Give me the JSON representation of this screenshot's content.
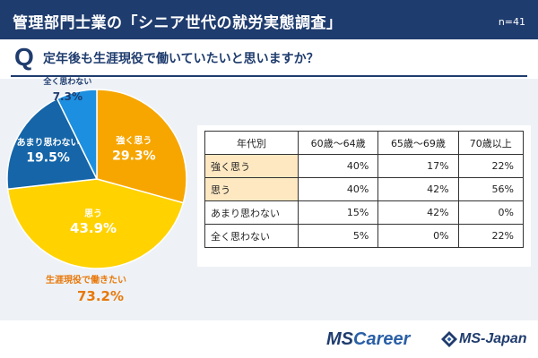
{
  "header": {
    "title": "管理部門士業の「シニア世代の就労実態調査」",
    "sample": "n=41"
  },
  "question": {
    "mark": "Q",
    "text": "定年後も生涯現役で働いていたいと思いますか？"
  },
  "colors": {
    "header_bg": "#1f3c6e",
    "panel_bg": "#eef2f6",
    "strongly_agree": "#f7a600",
    "agree": "#ffd200",
    "somewhat_disagree": "#1565a8",
    "strongly_disagree": "#1d8fe0",
    "summary_text": "#e8780a",
    "row_highlight": "#fde8c2"
  },
  "chart_data": [
    {
      "type": "pie",
      "start_angle": "12 o'clock",
      "direction": "clockwise",
      "slices": [
        {
          "label": "強く思う",
          "value": 29.3,
          "value_label": "29.3%",
          "color": "#f7a600"
        },
        {
          "label": "思う",
          "value": 43.9,
          "value_label": "43.9%",
          "color": "#ffd200"
        },
        {
          "label": "あまり思わない",
          "value": 19.5,
          "value_label": "19.5%",
          "color": "#1565a8"
        },
        {
          "label": "全く思わない",
          "value": 7.3,
          "value_label": "7.3%",
          "color": "#1d8fe0"
        }
      ],
      "summary_label": "生涯現役で働きたい",
      "summary_value": "73.2%"
    },
    {
      "type": "table",
      "columns": [
        "年代別",
        "60歳～64歳",
        "65歳～69歳",
        "70歳以上"
      ],
      "rows": [
        {
          "label": "強く思う",
          "values": [
            "40%",
            "17%",
            "22%"
          ],
          "highlight": true
        },
        {
          "label": "思う",
          "values": [
            "40%",
            "42%",
            "56%"
          ],
          "highlight": true
        },
        {
          "label": "あまり思わない",
          "values": [
            "15%",
            "42%",
            "0%"
          ],
          "highlight": false
        },
        {
          "label": "全く思わない",
          "values": [
            "5%",
            "0%",
            "22%"
          ],
          "highlight": false
        }
      ]
    }
  ],
  "footer": {
    "logo_mscareer": {
      "part1": "MS",
      "part2": "Career"
    },
    "logo_msjapan": "MS-Japan"
  }
}
